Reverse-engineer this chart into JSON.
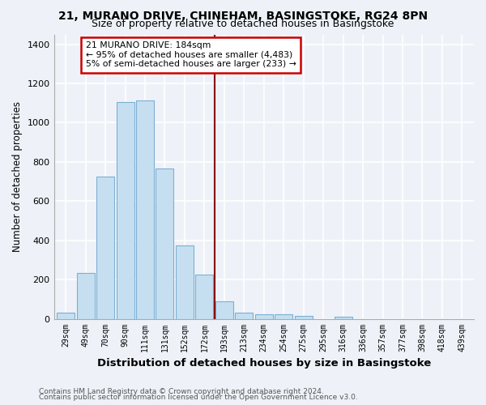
{
  "title": "21, MURANO DRIVE, CHINEHAM, BASINGSTOKE, RG24 8PN",
  "subtitle": "Size of property relative to detached houses in Basingstoke",
  "xlabel": "Distribution of detached houses by size in Basingstoke",
  "ylabel": "Number of detached properties",
  "categories": [
    "29sqm",
    "49sqm",
    "70sqm",
    "90sqm",
    "111sqm",
    "131sqm",
    "152sqm",
    "172sqm",
    "193sqm",
    "213sqm",
    "234sqm",
    "254sqm",
    "275sqm",
    "295sqm",
    "316sqm",
    "336sqm",
    "357sqm",
    "377sqm",
    "398sqm",
    "418sqm",
    "439sqm"
  ],
  "values": [
    30,
    235,
    725,
    1105,
    1115,
    765,
    375,
    225,
    90,
    30,
    25,
    22,
    15,
    0,
    10,
    0,
    0,
    0,
    0,
    0,
    0
  ],
  "bar_color": "#c6dff0",
  "bar_edgecolor": "#7bafd4",
  "background_color": "#eef2f8",
  "grid_color": "#ffffff",
  "vline_color": "#8b0000",
  "annotation_text": "21 MURANO DRIVE: 184sqm\n← 95% of detached houses are smaller (4,483)\n5% of semi-detached houses are larger (233) →",
  "ylim": [
    0,
    1450
  ],
  "yticks": [
    0,
    200,
    400,
    600,
    800,
    1000,
    1200,
    1400
  ],
  "footer_line1": "Contains HM Land Registry data © Crown copyright and database right 2024.",
  "footer_line2": "Contains public sector information licensed under the Open Government Licence v3.0.",
  "title_fontsize": 10,
  "subtitle_fontsize": 9,
  "xlabel_fontsize": 9.5,
  "ylabel_fontsize": 8.5
}
